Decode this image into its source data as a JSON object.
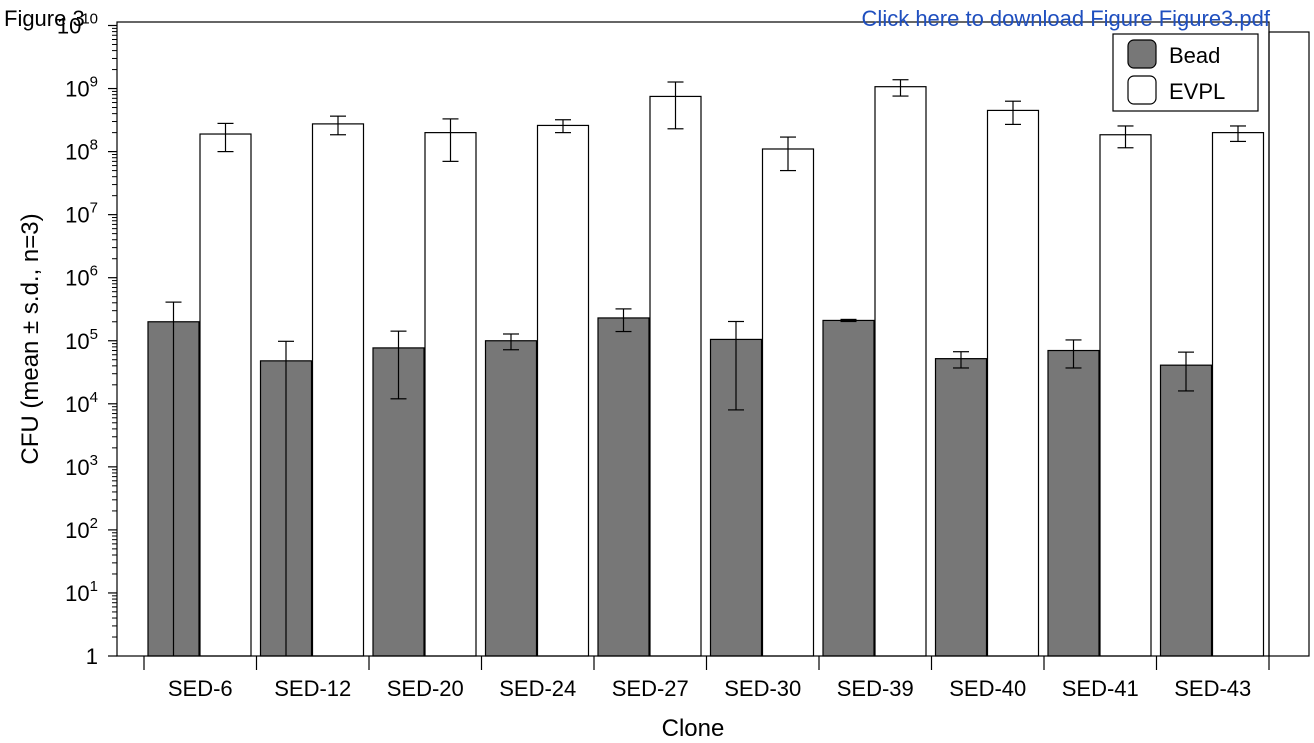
{
  "header": {
    "figure_label": "Figure 3",
    "download_link": "Click here to download Figure Figure3.pdf"
  },
  "chart_data": {
    "type": "bar",
    "title": "",
    "xlabel": "Clone",
    "ylabel": "CFU (mean ± s.d., n=3)",
    "yscale": "log",
    "ylim": [
      1,
      10000000000
    ],
    "yticks": [
      1,
      10,
      100,
      1000,
      10000,
      100000,
      1000000,
      10000000,
      100000000,
      1000000000,
      10000000000
    ],
    "grid": false,
    "legend_position": "top-right",
    "categories": [
      "SED-6",
      "SED-12",
      "SED-20",
      "SED-24",
      "SED-27",
      "SED-30",
      "SED-39",
      "SED-40",
      "SED-41",
      "SED-43"
    ],
    "series": [
      {
        "name": "Bead",
        "color": "#777777",
        "values": [
          200000,
          48000,
          77000,
          100000,
          230000,
          105000,
          210000,
          52000,
          70000,
          41000
        ],
        "error_low": [
          200000,
          48000,
          65000,
          28000,
          90000,
          97000,
          8000,
          15000,
          33000,
          25000
        ],
        "error_high": [
          210000,
          50000,
          65000,
          28000,
          90000,
          97000,
          8000,
          15000,
          33000,
          25000
        ]
      },
      {
        "name": "EVPL",
        "color": "#ffffff",
        "values": [
          190000000,
          275000000,
          200000000,
          260000000,
          750000000,
          110000000,
          1070000000,
          450000000,
          185000000,
          200000000
        ],
        "error_low": [
          90000000,
          90000000,
          130000000,
          60000000,
          520000000,
          60000000,
          310000000,
          180000000,
          70000000,
          55000000
        ],
        "error_high": [
          90000000,
          90000000,
          130000000,
          60000000,
          520000000,
          60000000,
          310000000,
          180000000,
          70000000,
          55000000
        ]
      }
    ]
  }
}
